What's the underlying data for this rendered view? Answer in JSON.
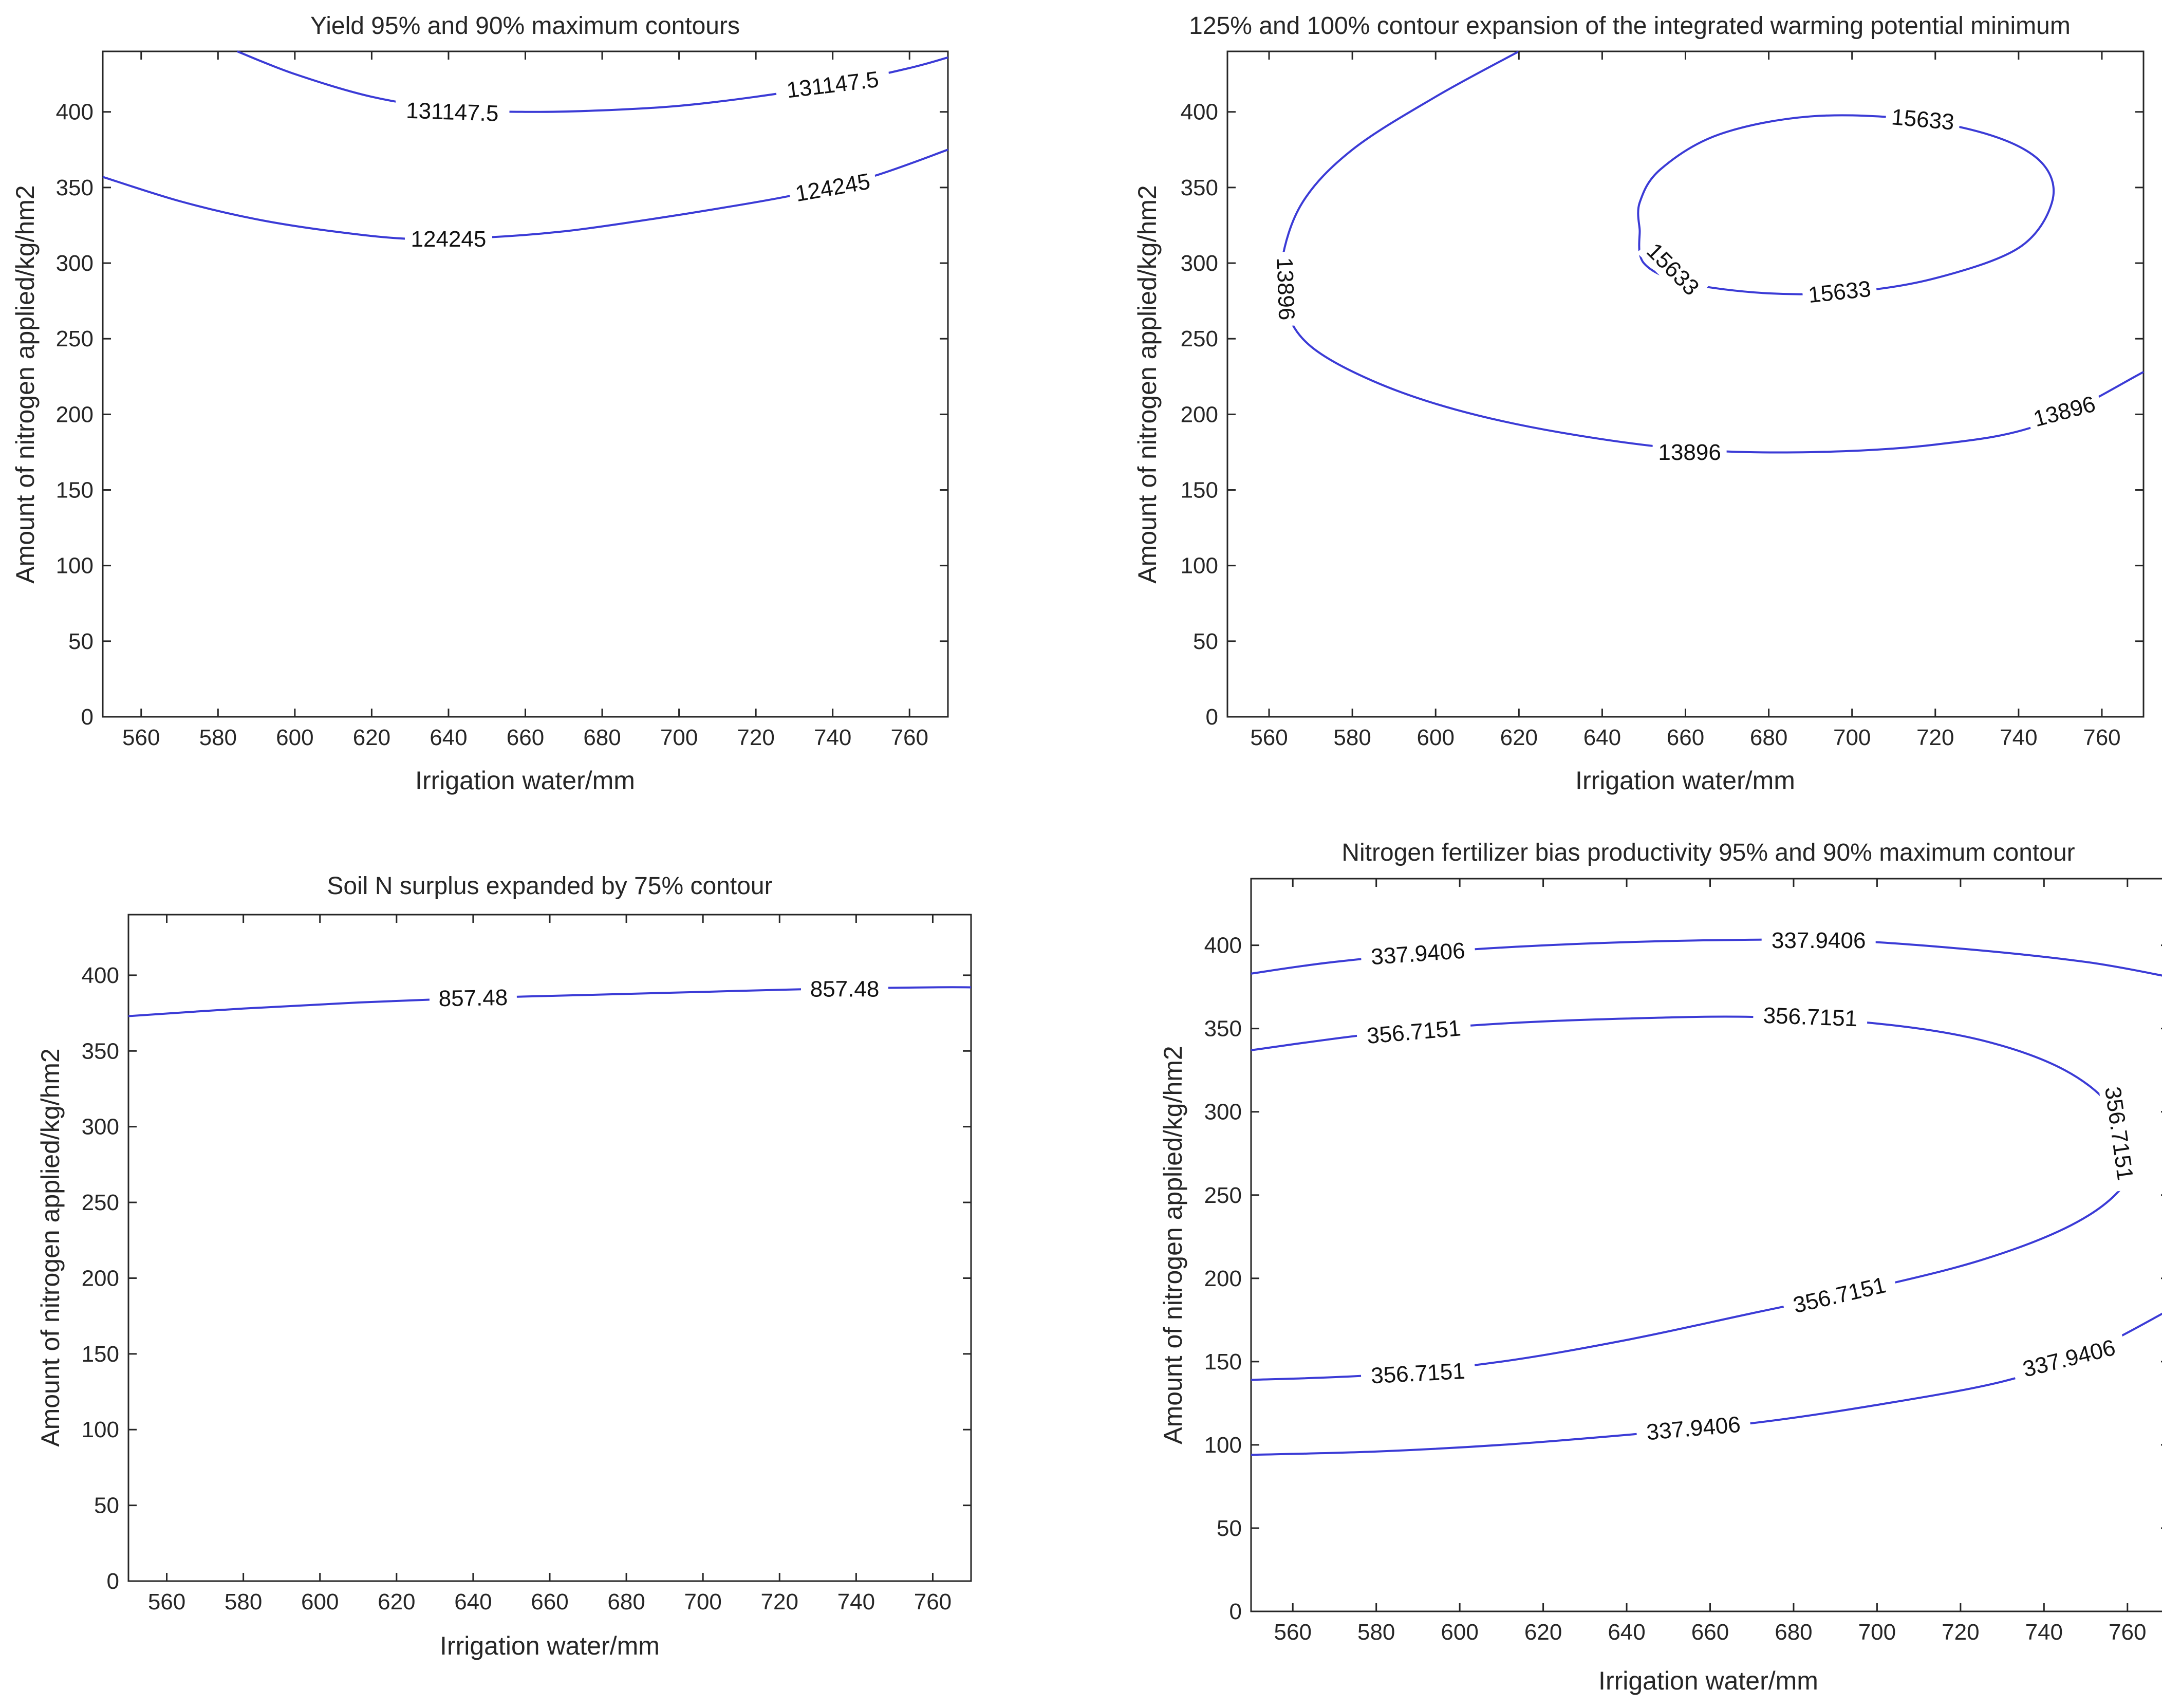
{
  "chart_data": [
    {
      "type": "contour",
      "title": "Yield 95% and 90% maximum contours",
      "xlabel": "Irrigation water/mm",
      "ylabel": "Amount of nitrogen applied/kg/hm2",
      "xlim": [
        550,
        770
      ],
      "ylim": [
        0,
        440
      ],
      "xticks": [
        560,
        580,
        600,
        620,
        640,
        660,
        680,
        700,
        720,
        740,
        760
      ],
      "yticks": [
        0,
        50,
        100,
        150,
        200,
        250,
        300,
        350,
        400
      ],
      "series": [
        {
          "name": "131147.5",
          "points": [
            [
              585,
              440
            ],
            [
              600,
              425
            ],
            [
              620,
              410
            ],
            [
              640,
              402
            ],
            [
              660,
              400
            ],
            [
              680,
              401
            ],
            [
              700,
              404
            ],
            [
              720,
              410
            ],
            [
              740,
              418
            ],
            [
              760,
              429
            ],
            [
              770,
              436
            ]
          ],
          "labels": [
            {
              "text": "131147.5",
              "x": 641,
              "y": 400,
              "rot": 2
            },
            {
              "text": "131147.5",
              "x": 740,
              "y": 418,
              "rot": -7
            }
          ]
        },
        {
          "name": "124245",
          "points": [
            [
              550,
              357
            ],
            [
              570,
              341
            ],
            [
              590,
              329
            ],
            [
              610,
              321
            ],
            [
              630,
              316
            ],
            [
              650,
              317
            ],
            [
              670,
              321
            ],
            [
              690,
              328
            ],
            [
              710,
              336
            ],
            [
              730,
              345
            ],
            [
              750,
              357
            ],
            [
              770,
              375
            ]
          ],
          "labels": [
            {
              "text": "124245",
              "x": 640,
              "y": 316,
              "rot": 0
            },
            {
              "text": "124245",
              "x": 740,
              "y": 350,
              "rot": -10
            }
          ]
        }
      ]
    },
    {
      "type": "contour",
      "title": "125% and 100% contour expansion of the integrated warming potential minimum",
      "xlabel": "Irrigation water/mm",
      "ylabel": "Amount of nitrogen applied/kg/hm2",
      "xlim": [
        550,
        770
      ],
      "ylim": [
        0,
        440
      ],
      "xticks": [
        560,
        580,
        600,
        620,
        640,
        660,
        680,
        700,
        720,
        740,
        760
      ],
      "yticks": [
        0,
        50,
        100,
        150,
        200,
        250,
        300,
        350,
        400
      ],
      "series": [
        {
          "name": "13896",
          "points": [
            [
              620,
              440
            ],
            [
              600,
              410
            ],
            [
              580,
              375
            ],
            [
              568,
              340
            ],
            [
              563,
              300
            ],
            [
              564,
              270
            ],
            [
              570,
              245
            ],
            [
              585,
              222
            ],
            [
              605,
              203
            ],
            [
              630,
              188
            ],
            [
              660,
              177
            ],
            [
              690,
              175
            ],
            [
              720,
              180
            ],
            [
              745,
              193
            ],
            [
              770,
              228
            ]
          ],
          "labels": [
            {
              "text": "13896",
              "x": 564,
              "y": 283,
              "rot": 88
            },
            {
              "text": "13896",
              "x": 661,
              "y": 175,
              "rot": 0
            },
            {
              "text": "13896",
              "x": 751,
              "y": 202,
              "rot": -15
            }
          ]
        },
        {
          "name": "15633",
          "points": [
            [
              649,
              322
            ],
            [
              650,
              300
            ],
            [
              660,
              287
            ],
            [
              680,
              280
            ],
            [
              700,
              281
            ],
            [
              720,
              290
            ],
            [
              740,
              310
            ],
            [
              748,
              340
            ],
            [
              746,
              365
            ],
            [
              735,
              383
            ],
            [
              715,
              395
            ],
            [
              690,
              397
            ],
            [
              668,
              385
            ],
            [
              654,
              362
            ],
            [
              649,
              340
            ],
            [
              649,
              322
            ]
          ],
          "labels": [
            {
              "text": "15633",
              "x": 717,
              "y": 395,
              "rot": 5
            },
            {
              "text": "15633",
              "x": 657,
              "y": 296,
              "rot": 45
            },
            {
              "text": "15633",
              "x": 697,
              "y": 281,
              "rot": -6
            }
          ]
        }
      ]
    },
    {
      "type": "contour",
      "title": "Soil N surplus expanded by 75% contour",
      "xlabel": "Irrigation water/mm",
      "ylabel": "Amount of nitrogen applied/kg/hm2",
      "xlim": [
        550,
        770
      ],
      "ylim": [
        0,
        440
      ],
      "xticks": [
        560,
        580,
        600,
        620,
        640,
        660,
        680,
        700,
        720,
        740,
        760
      ],
      "yticks": [
        0,
        50,
        100,
        150,
        200,
        250,
        300,
        350,
        400
      ],
      "series": [
        {
          "name": "857.48",
          "points": [
            [
              550,
              373
            ],
            [
              580,
              378
            ],
            [
              610,
              382
            ],
            [
              640,
              385
            ],
            [
              670,
              387
            ],
            [
              700,
              389
            ],
            [
              730,
              391
            ],
            [
              760,
              392
            ],
            [
              770,
              392
            ]
          ],
          "labels": [
            {
              "text": "857.48",
              "x": 640,
              "y": 385,
              "rot": -1
            },
            {
              "text": "857.48",
              "x": 737,
              "y": 391,
              "rot": 0
            }
          ]
        }
      ]
    },
    {
      "type": "contour",
      "title": "Nitrogen fertilizer bias productivity 95% and 90% maximum contour",
      "xlabel": "Irrigation water/mm",
      "ylabel": "Amount of nitrogen applied/kg/hm2",
      "xlim": [
        550,
        770
      ],
      "ylim": [
        0,
        440
      ],
      "xticks": [
        560,
        580,
        600,
        620,
        640,
        660,
        680,
        700,
        720,
        740,
        760
      ],
      "yticks": [
        0,
        50,
        100,
        150,
        200,
        250,
        300,
        350,
        400
      ],
      "series": [
        {
          "name": "337.9406 (upper)",
          "points": [
            [
              550,
              383
            ],
            [
              570,
              390
            ],
            [
              600,
              397
            ],
            [
              630,
              401
            ],
            [
              660,
              403
            ],
            [
              690,
              403
            ],
            [
              720,
              398
            ],
            [
              750,
              390
            ],
            [
              770,
              381
            ]
          ],
          "labels": [
            {
              "text": "337.9406",
              "x": 590,
              "y": 395,
              "rot": -4
            },
            {
              "text": "337.9406",
              "x": 686,
              "y": 403,
              "rot": 0
            }
          ]
        },
        {
          "name": "356.7151",
          "points": [
            [
              550,
              337
            ],
            [
              580,
              347
            ],
            [
              610,
              353
            ],
            [
              640,
              356
            ],
            [
              670,
              357
            ],
            [
              700,
              353
            ],
            [
              725,
              343
            ],
            [
              745,
              325
            ],
            [
              757,
              300
            ],
            [
              761,
              270
            ],
            [
              757,
              250
            ],
            [
              745,
              230
            ],
            [
              725,
              211
            ],
            [
              700,
              195
            ],
            [
              670,
              179
            ],
            [
              640,
              163
            ],
            [
              610,
              150
            ],
            [
              580,
              142
            ],
            [
              550,
              139
            ]
          ],
          "labels": [
            {
              "text": "356.7151",
              "x": 589,
              "y": 348,
              "rot": -5
            },
            {
              "text": "356.7151",
              "x": 684,
              "y": 357,
              "rot": 2
            },
            {
              "text": "356.7151",
              "x": 758,
              "y": 287,
              "rot": 82
            },
            {
              "text": "356.7151",
              "x": 691,
              "y": 190,
              "rot": -13
            },
            {
              "text": "356.7151",
              "x": 590,
              "y": 143,
              "rot": -3
            }
          ]
        },
        {
          "name": "337.9406 (lower)",
          "points": [
            [
              550,
              94
            ],
            [
              580,
              96
            ],
            [
              610,
              100
            ],
            [
              640,
              106
            ],
            [
              670,
              113
            ],
            [
              700,
              124
            ],
            [
              730,
              138
            ],
            [
              750,
              155
            ],
            [
              770,
              181
            ]
          ],
          "labels": [
            {
              "text": "337.9406",
              "x": 656,
              "y": 110,
              "rot": -5
            },
            {
              "text": "337.9406",
              "x": 746,
              "y": 152,
              "rot": -14
            }
          ]
        }
      ]
    }
  ]
}
